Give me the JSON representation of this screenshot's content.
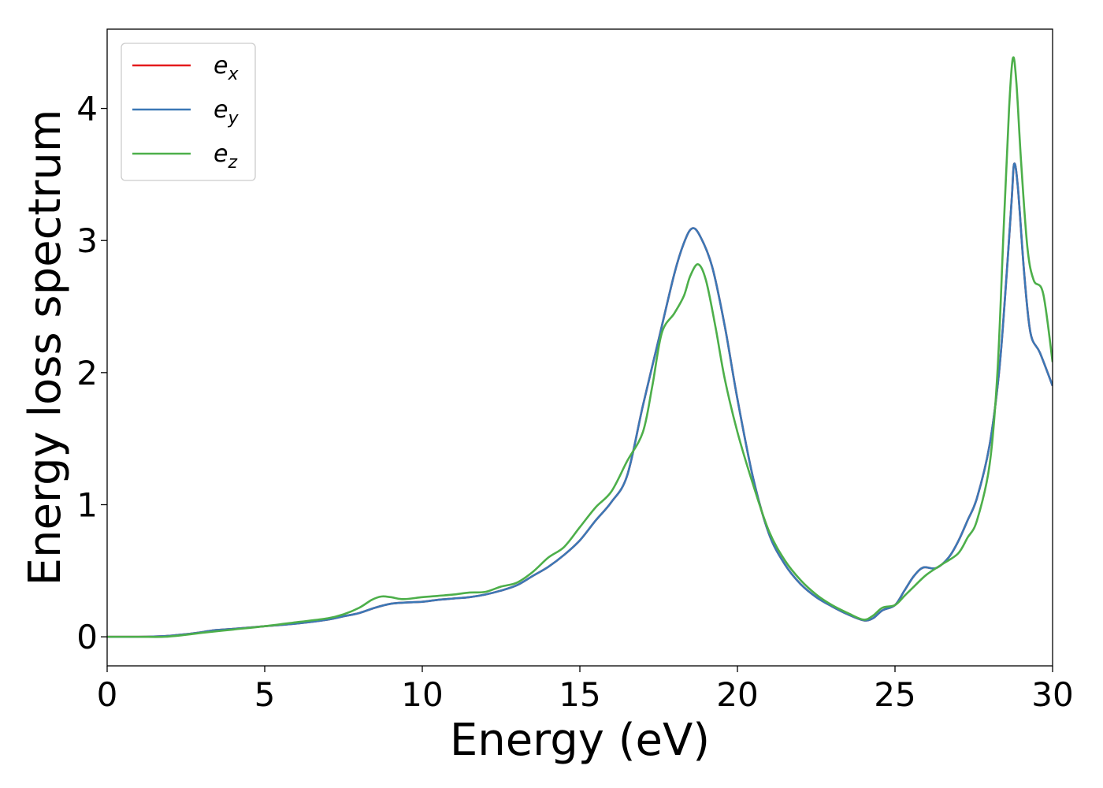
{
  "chart_data": {
    "type": "line",
    "title": "",
    "xlabel": "Energy (eV)",
    "ylabel": "Energy loss spectrum",
    "xlim": [
      0,
      30
    ],
    "ylim": [
      -0.22,
      4.6
    ],
    "xticks": [
      0,
      5,
      10,
      15,
      20,
      25,
      30
    ],
    "xtick_labels": [
      "0",
      "5",
      "10",
      "15",
      "20",
      "25",
      "30"
    ],
    "yticks": [
      0,
      1,
      2,
      3,
      4
    ],
    "ytick_labels": [
      "0",
      "1",
      "2",
      "3",
      "4"
    ],
    "grid": false,
    "legend_position": "top-left",
    "series": [
      {
        "name": "e_x",
        "legend_main": "e",
        "legend_sub": "x",
        "color": "#e41a1c",
        "points": [
          [
            0,
            0
          ],
          [
            1,
            0
          ],
          [
            1.8,
            0.005
          ],
          [
            2.5,
            0.02
          ],
          [
            3,
            0.035
          ],
          [
            3.4,
            0.05
          ],
          [
            4,
            0.06
          ],
          [
            5,
            0.08
          ],
          [
            6,
            0.1
          ],
          [
            7,
            0.13
          ],
          [
            7.5,
            0.155
          ],
          [
            8,
            0.18
          ],
          [
            8.5,
            0.22
          ],
          [
            9,
            0.25
          ],
          [
            9.5,
            0.26
          ],
          [
            10,
            0.265
          ],
          [
            10.5,
            0.28
          ],
          [
            11,
            0.29
          ],
          [
            11.5,
            0.3
          ],
          [
            12,
            0.32
          ],
          [
            12.5,
            0.35
          ],
          [
            13,
            0.39
          ],
          [
            13.5,
            0.46
          ],
          [
            14,
            0.53
          ],
          [
            14.5,
            0.62
          ],
          [
            15,
            0.73
          ],
          [
            15.5,
            0.88
          ],
          [
            16,
            1.02
          ],
          [
            16.5,
            1.22
          ],
          [
            17,
            1.75
          ],
          [
            17.5,
            2.25
          ],
          [
            18,
            2.75
          ],
          [
            18.3,
            2.98
          ],
          [
            18.55,
            3.09
          ],
          [
            18.8,
            3.04
          ],
          [
            19.2,
            2.8
          ],
          [
            19.6,
            2.35
          ],
          [
            20,
            1.8
          ],
          [
            20.5,
            1.2
          ],
          [
            21,
            0.78
          ],
          [
            21.5,
            0.55
          ],
          [
            22,
            0.4
          ],
          [
            22.5,
            0.3
          ],
          [
            23,
            0.23
          ],
          [
            23.5,
            0.17
          ],
          [
            24,
            0.125
          ],
          [
            24.3,
            0.14
          ],
          [
            24.6,
            0.2
          ],
          [
            25,
            0.24
          ],
          [
            25.3,
            0.35
          ],
          [
            25.6,
            0.46
          ],
          [
            25.9,
            0.525
          ],
          [
            26.3,
            0.52
          ],
          [
            26.7,
            0.6
          ],
          [
            27,
            0.72
          ],
          [
            27.3,
            0.88
          ],
          [
            27.6,
            1.05
          ],
          [
            28,
            1.45
          ],
          [
            28.3,
            2.0
          ],
          [
            28.5,
            2.6
          ],
          [
            28.7,
            3.3
          ],
          [
            28.78,
            3.58
          ],
          [
            28.9,
            3.4
          ],
          [
            29.1,
            2.75
          ],
          [
            29.3,
            2.3
          ],
          [
            29.6,
            2.15
          ],
          [
            30,
            1.9
          ]
        ]
      },
      {
        "name": "e_y",
        "legend_main": "e",
        "legend_sub": "y",
        "color": "#3b78b6",
        "points": [
          [
            0,
            0
          ],
          [
            1,
            0
          ],
          [
            1.8,
            0.005
          ],
          [
            2.5,
            0.02
          ],
          [
            3,
            0.035
          ],
          [
            3.4,
            0.05
          ],
          [
            4,
            0.06
          ],
          [
            5,
            0.08
          ],
          [
            6,
            0.1
          ],
          [
            7,
            0.13
          ],
          [
            7.5,
            0.155
          ],
          [
            8,
            0.18
          ],
          [
            8.5,
            0.22
          ],
          [
            9,
            0.25
          ],
          [
            9.5,
            0.26
          ],
          [
            10,
            0.265
          ],
          [
            10.5,
            0.28
          ],
          [
            11,
            0.29
          ],
          [
            11.5,
            0.3
          ],
          [
            12,
            0.32
          ],
          [
            12.5,
            0.35
          ],
          [
            13,
            0.39
          ],
          [
            13.5,
            0.46
          ],
          [
            14,
            0.53
          ],
          [
            14.5,
            0.62
          ],
          [
            15,
            0.73
          ],
          [
            15.5,
            0.88
          ],
          [
            16,
            1.02
          ],
          [
            16.5,
            1.22
          ],
          [
            17,
            1.75
          ],
          [
            17.5,
            2.25
          ],
          [
            18,
            2.75
          ],
          [
            18.3,
            2.98
          ],
          [
            18.55,
            3.09
          ],
          [
            18.8,
            3.04
          ],
          [
            19.2,
            2.8
          ],
          [
            19.6,
            2.35
          ],
          [
            20,
            1.8
          ],
          [
            20.5,
            1.2
          ],
          [
            21,
            0.78
          ],
          [
            21.5,
            0.55
          ],
          [
            22,
            0.4
          ],
          [
            22.5,
            0.3
          ],
          [
            23,
            0.23
          ],
          [
            23.5,
            0.17
          ],
          [
            24,
            0.125
          ],
          [
            24.3,
            0.14
          ],
          [
            24.6,
            0.2
          ],
          [
            25,
            0.24
          ],
          [
            25.3,
            0.35
          ],
          [
            25.6,
            0.46
          ],
          [
            25.9,
            0.525
          ],
          [
            26.3,
            0.52
          ],
          [
            26.7,
            0.6
          ],
          [
            27,
            0.72
          ],
          [
            27.3,
            0.88
          ],
          [
            27.6,
            1.05
          ],
          [
            28,
            1.45
          ],
          [
            28.3,
            2.0
          ],
          [
            28.5,
            2.6
          ],
          [
            28.7,
            3.3
          ],
          [
            28.78,
            3.58
          ],
          [
            28.9,
            3.4
          ],
          [
            29.1,
            2.75
          ],
          [
            29.3,
            2.3
          ],
          [
            29.6,
            2.15
          ],
          [
            30,
            1.9
          ]
        ]
      },
      {
        "name": "e_z",
        "legend_main": "e",
        "legend_sub": "z",
        "color": "#4daf4a",
        "points": [
          [
            0,
            0
          ],
          [
            1,
            0
          ],
          [
            1.8,
            0
          ],
          [
            2.5,
            0.015
          ],
          [
            3,
            0.03
          ],
          [
            4,
            0.055
          ],
          [
            5,
            0.08
          ],
          [
            6,
            0.11
          ],
          [
            7,
            0.14
          ],
          [
            7.5,
            0.17
          ],
          [
            8,
            0.22
          ],
          [
            8.4,
            0.28
          ],
          [
            8.7,
            0.305
          ],
          [
            9,
            0.3
          ],
          [
            9.4,
            0.285
          ],
          [
            10,
            0.3
          ],
          [
            10.5,
            0.31
          ],
          [
            11,
            0.32
          ],
          [
            11.5,
            0.335
          ],
          [
            12,
            0.34
          ],
          [
            12.5,
            0.38
          ],
          [
            13,
            0.41
          ],
          [
            13.5,
            0.49
          ],
          [
            14,
            0.6
          ],
          [
            14.5,
            0.68
          ],
          [
            15,
            0.83
          ],
          [
            15.5,
            0.98
          ],
          [
            16,
            1.1
          ],
          [
            16.5,
            1.33
          ],
          [
            17,
            1.55
          ],
          [
            17.3,
            1.9
          ],
          [
            17.6,
            2.3
          ],
          [
            18,
            2.45
          ],
          [
            18.3,
            2.58
          ],
          [
            18.5,
            2.73
          ],
          [
            18.75,
            2.82
          ],
          [
            19,
            2.7
          ],
          [
            19.3,
            2.35
          ],
          [
            19.6,
            1.95
          ],
          [
            20,
            1.55
          ],
          [
            20.5,
            1.15
          ],
          [
            21,
            0.8
          ],
          [
            21.5,
            0.58
          ],
          [
            22,
            0.43
          ],
          [
            22.5,
            0.32
          ],
          [
            23,
            0.24
          ],
          [
            23.5,
            0.18
          ],
          [
            24,
            0.13
          ],
          [
            24.3,
            0.16
          ],
          [
            24.6,
            0.22
          ],
          [
            25,
            0.24
          ],
          [
            25.3,
            0.31
          ],
          [
            25.6,
            0.38
          ],
          [
            26,
            0.47
          ],
          [
            26.5,
            0.55
          ],
          [
            27,
            0.63
          ],
          [
            27.3,
            0.75
          ],
          [
            27.6,
            0.88
          ],
          [
            28,
            1.3
          ],
          [
            28.25,
            2.0
          ],
          [
            28.45,
            3.1
          ],
          [
            28.62,
            4.0
          ],
          [
            28.74,
            4.38
          ],
          [
            28.85,
            4.2
          ],
          [
            29,
            3.6
          ],
          [
            29.2,
            2.95
          ],
          [
            29.4,
            2.7
          ],
          [
            29.7,
            2.6
          ],
          [
            30,
            2.08
          ]
        ]
      }
    ]
  }
}
